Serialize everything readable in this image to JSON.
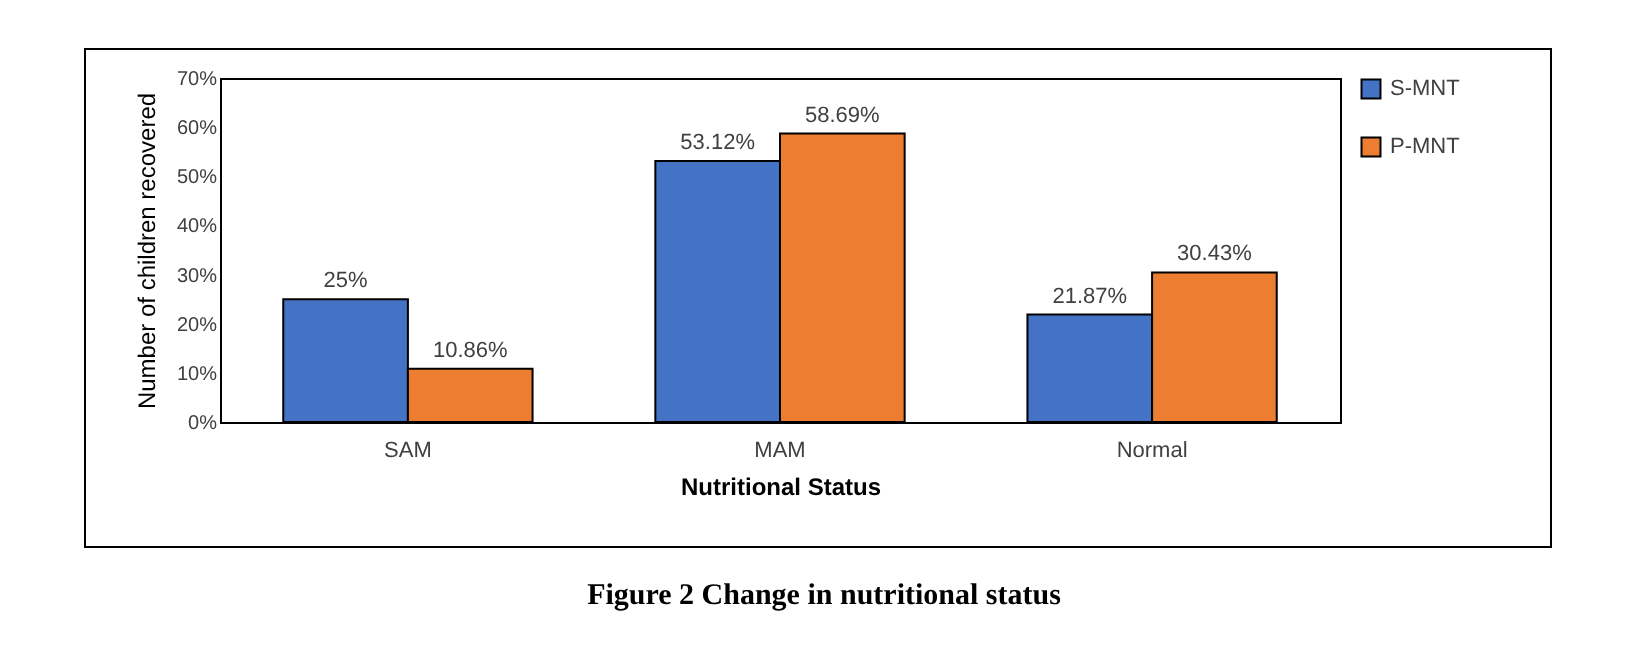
{
  "chart_data": {
    "type": "bar",
    "xlabel": "Nutritional Status",
    "ylabel": "Number of children recovered",
    "categories": [
      "SAM",
      "MAM",
      "Normal"
    ],
    "series": [
      {
        "name": "S-MNT",
        "color": "#4472c4",
        "values": [
          25,
          53.12,
          21.87
        ],
        "value_labels": [
          "25%",
          "53.12%",
          "21.87%"
        ]
      },
      {
        "name": "P-MNT",
        "color": "#ed7d31",
        "values": [
          10.86,
          58.69,
          30.43
        ],
        "value_labels": [
          "10.86%",
          "58.69%",
          "30.43%"
        ]
      }
    ],
    "ylim": [
      0,
      70
    ],
    "yticks": [
      {
        "value": 0,
        "label": "0%"
      },
      {
        "value": 10,
        "label": "10%"
      },
      {
        "value": 20,
        "label": "20%"
      },
      {
        "value": 30,
        "label": "30%"
      },
      {
        "value": 40,
        "label": "40%"
      },
      {
        "value": 50,
        "label": "50%"
      },
      {
        "value": 60,
        "label": "60%"
      },
      {
        "value": 70,
        "label": "70%"
      }
    ],
    "grid": false,
    "legend": "right",
    "annotations": [
      "Figure 2 Change in nutritional status"
    ]
  }
}
